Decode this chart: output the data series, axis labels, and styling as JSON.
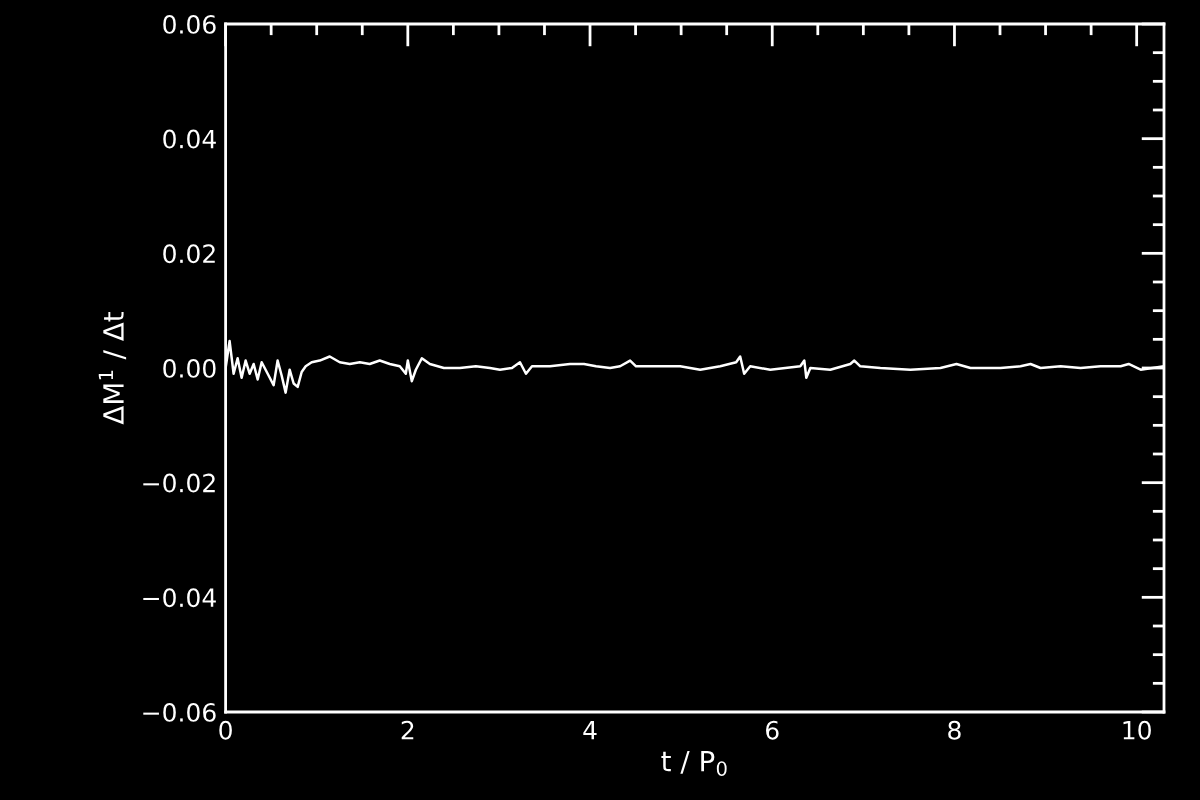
{
  "chart_data": {
    "type": "line",
    "xlabel": "t / P$_{0}$",
    "ylabel": "ΔM$^{1}$ / Δt",
    "xlim": [
      0,
      10.3
    ],
    "ylim": [
      -0.06,
      0.06
    ],
    "xticks": [
      0,
      {
        "value": 0.5,
        "label": null
      },
      {
        "value": 1,
        "label": null
      },
      {
        "value": 1.5,
        "label": null
      },
      2,
      {
        "value": 2.5,
        "label": null
      },
      {
        "value": 3,
        "label": null
      },
      {
        "value": 3.5,
        "label": null
      },
      4,
      {
        "value": 4.5,
        "label": null
      },
      {
        "value": 5,
        "label": null
      },
      {
        "value": 5.5,
        "label": null
      },
      6,
      {
        "value": 6.5,
        "label": null
      },
      {
        "value": 7,
        "label": null
      },
      {
        "value": 7.5,
        "label": null
      },
      8,
      {
        "value": 8.5,
        "label": null
      },
      {
        "value": 9,
        "label": null
      },
      {
        "value": 9.5,
        "label": null
      },
      10
    ],
    "yticks": [
      {
        "value": -0.06,
        "label": "−0.06"
      },
      {
        "value": -0.055,
        "label": null
      },
      {
        "value": -0.05,
        "label": null
      },
      {
        "value": -0.045,
        "label": null
      },
      {
        "value": -0.04,
        "label": "−0.04"
      },
      {
        "value": -0.035,
        "label": null
      },
      {
        "value": -0.03,
        "label": null
      },
      {
        "value": -0.025,
        "label": null
      },
      {
        "value": -0.02,
        "label": "−0.02"
      },
      {
        "value": -0.015,
        "label": null
      },
      {
        "value": -0.01,
        "label": null
      },
      {
        "value": -0.005,
        "label": null
      },
      {
        "value": 0,
        "label": "0.00"
      },
      {
        "value": 0.005,
        "label": null
      },
      {
        "value": 0.01,
        "label": null
      },
      {
        "value": 0.015,
        "label": null
      },
      {
        "value": 0.02,
        "label": "0.02"
      },
      {
        "value": 0.025,
        "label": null
      },
      {
        "value": 0.03,
        "label": null
      },
      {
        "value": 0.035,
        "label": null
      },
      {
        "value": 0.04,
        "label": "0.04"
      },
      {
        "value": 0.045,
        "label": null
      },
      {
        "value": 0.05,
        "label": null
      },
      {
        "value": 0.055,
        "label": null
      },
      {
        "value": 0.06,
        "label": "0.06"
      }
    ],
    "grid": false,
    "legend": false,
    "series": [
      {
        "color": "#ffffff",
        "x": [
          0,
          0.044,
          0.088,
          0.132,
          0.176,
          0.22,
          0.264,
          0.308,
          0.352,
          0.396,
          0.462,
          0.527,
          0.571,
          0.615,
          0.659,
          0.703,
          0.747,
          0.791,
          0.835,
          0.879,
          0.945,
          1.033,
          1.143,
          1.253,
          1.363,
          1.473,
          1.582,
          1.692,
          1.802,
          1.912,
          1.978,
          2.0,
          2.044,
          2.088,
          2.154,
          2.242,
          2.396,
          2.571,
          2.747,
          2.901,
          3.011,
          3.143,
          3.231,
          3.297,
          3.363,
          3.56,
          3.78,
          3.934,
          4.066,
          4.22,
          4.33,
          4.44,
          4.505,
          4.659,
          4.989,
          5.209,
          5.429,
          5.604,
          5.648,
          5.692,
          5.758,
          5.978,
          6.308,
          6.352,
          6.374,
          6.418,
          6.637,
          6.857,
          6.901,
          6.967,
          7.187,
          7.516,
          7.846,
          8.022,
          8.176,
          8.505,
          8.725,
          8.835,
          8.945,
          9.165,
          9.385,
          9.604,
          9.824,
          9.912,
          10.044,
          10.3
        ],
        "values": [
          0,
          0.0047,
          -0.001,
          0.0017,
          -0.0017,
          0.0013,
          -0.001,
          0.0007,
          -0.002,
          0.001,
          -0.001,
          -0.003,
          0.0013,
          -0.0013,
          -0.0043,
          -0.0003,
          -0.0027,
          -0.0033,
          -0.0007,
          0.0003,
          0.001,
          0.0013,
          0.002,
          0.001,
          0.0007,
          0.001,
          0.0007,
          0.0013,
          0.0007,
          0.0003,
          -0.001,
          0.0013,
          -0.0023,
          -0.0003,
          0.0017,
          0.0007,
          0,
          0,
          0.0003,
          0,
          -0.0003,
          0,
          0.001,
          -0.001,
          0.0003,
          0.0003,
          0.0007,
          0.0007,
          0.0003,
          0,
          0.0003,
          0.0013,
          0.0003,
          0.0003,
          0.0003,
          -0.0003,
          0.0003,
          0.001,
          0.002,
          -0.001,
          0.0003,
          -0.0003,
          0.0003,
          0.0013,
          -0.0017,
          0,
          -0.0003,
          0.0007,
          0.0013,
          0.0003,
          0,
          -0.0003,
          0,
          0.0007,
          0,
          0,
          0.0003,
          0.0007,
          0,
          0.0003,
          0,
          0.0003,
          0.0003,
          0.0007,
          -0.0003,
          0.0003
        ]
      }
    ]
  }
}
